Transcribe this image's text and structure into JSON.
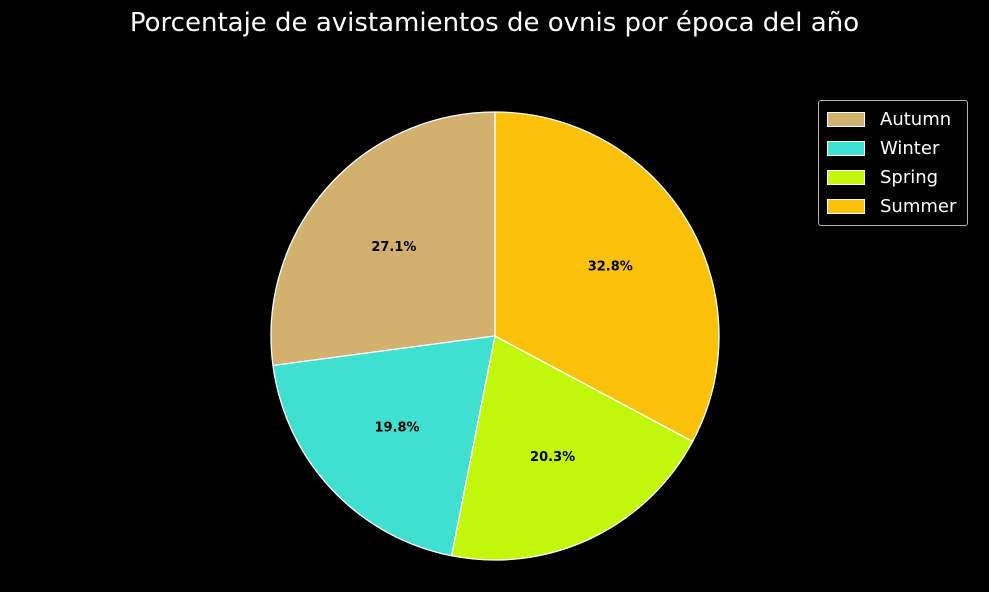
{
  "chart_data": {
    "type": "pie",
    "title": "Porcentaje de avistamientos de ovnis por época del año",
    "slices": [
      {
        "label": "Autumn",
        "value": 27.1,
        "pct_label": "27.1%",
        "color": "#d2b06e"
      },
      {
        "label": "Winter",
        "value": 19.8,
        "pct_label": "19.8%",
        "color": "#40e0d0"
      },
      {
        "label": "Spring",
        "value": 20.3,
        "pct_label": "20.3%",
        "color": "#c2f70a"
      },
      {
        "label": "Summer",
        "value": 32.8,
        "pct_label": "32.8%",
        "color": "#f9c208"
      }
    ],
    "start_angle_deg": 90,
    "direction": "counterclockwise",
    "edge_color": "#ffffff",
    "background": "#000000",
    "legend": {
      "position": "top-right"
    }
  }
}
